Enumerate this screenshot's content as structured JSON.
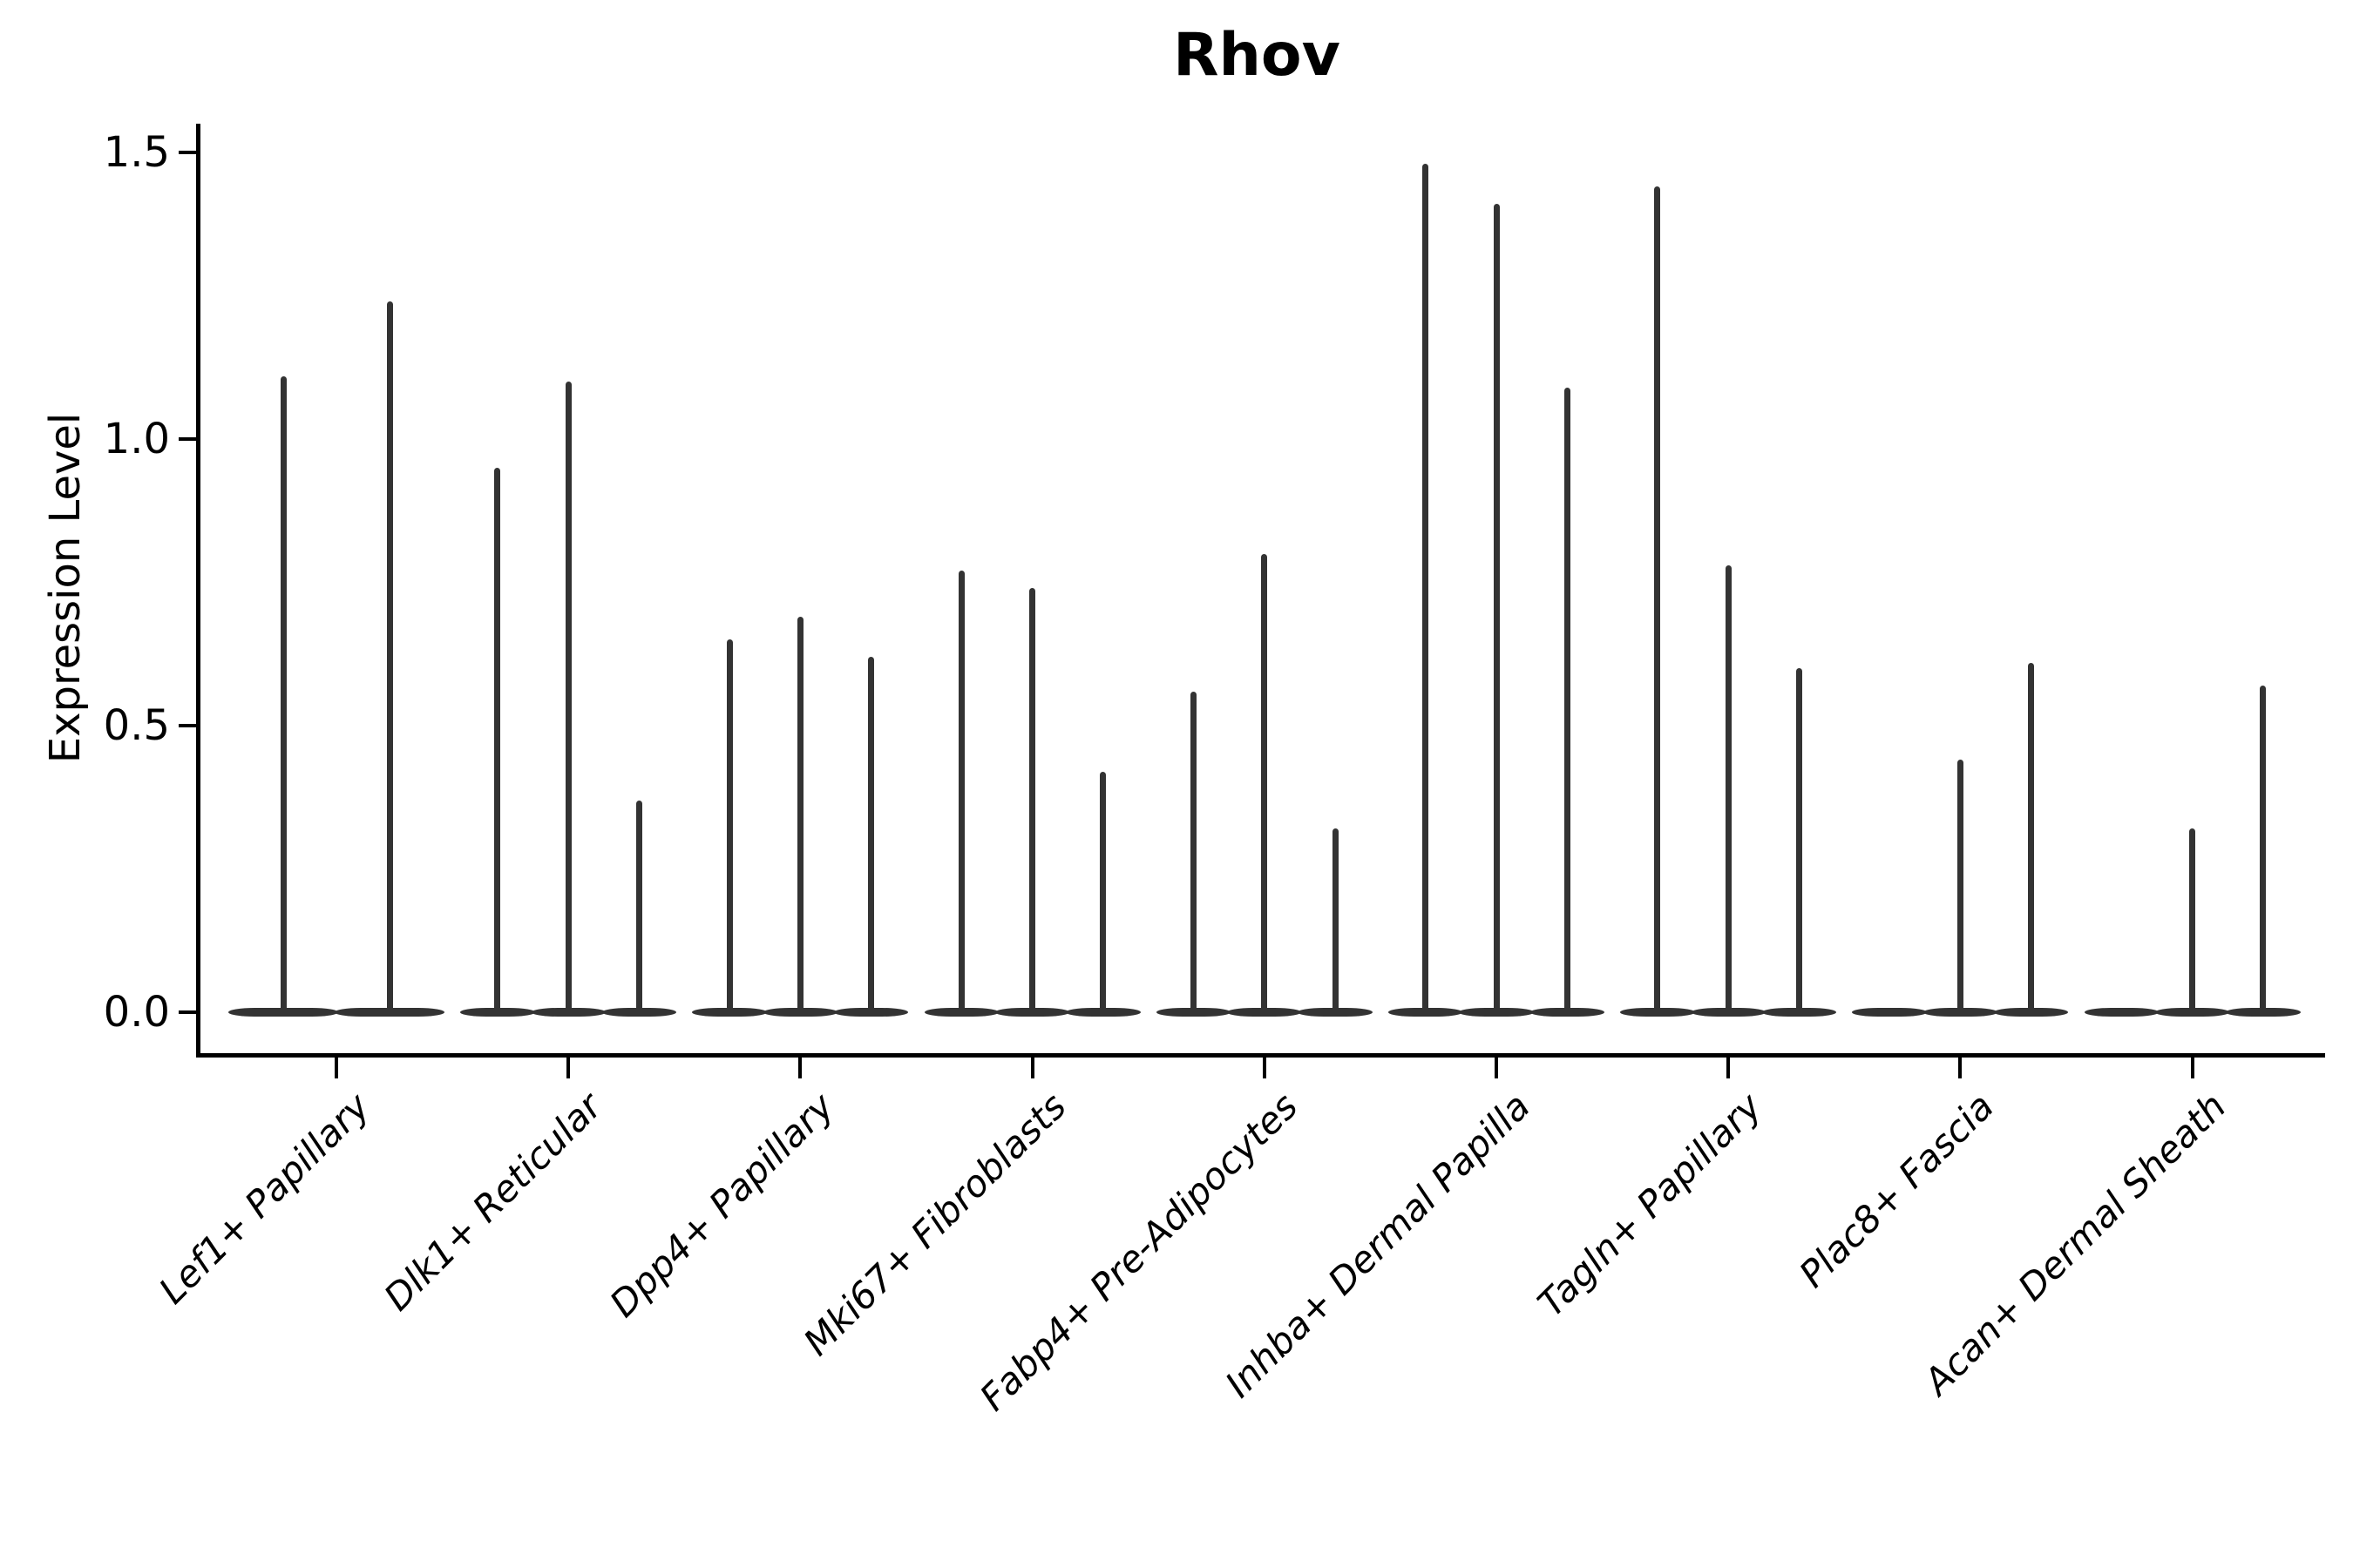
{
  "title": "Rhov",
  "y_axis": {
    "label": "Expression Level",
    "tick_labels": [
      "0.0",
      "0.5",
      "1.0",
      "1.5"
    ]
  },
  "x_axis": {
    "tick_labels": [
      "Lef1+ Papillary",
      "Dlk1+ Reticular",
      "Dpp4+ Papillary",
      "Mki67+ Fibroblasts",
      "Fabp4+ Pre-Adipocytes",
      "Inhba+ Dermal Papilla",
      "Tagln+ Papillary",
      "Plac8+ Fascia",
      "Acan+ Dermal Sheath"
    ]
  },
  "chart_data": {
    "type": "violin",
    "title": "Rhov",
    "xlabel": "",
    "ylabel": "Expression Level",
    "ylim": [
      0,
      1.55
    ],
    "yticks": [
      0.0,
      0.5,
      1.0,
      1.5
    ],
    "grid": false,
    "legend": "none",
    "x_tick_rotation": 45,
    "x_tick_style": "italic",
    "violin_style": "density collapsed flat at 0 with thin spike up to max value per violin",
    "categories": [
      "Lef1+ Papillary",
      "Dlk1+ Reticular",
      "Dpp4+ Papillary",
      "Mki67+ Fibroblasts",
      "Fabp4+ Pre-Adipocytes",
      "Inhba+ Dermal Papilla",
      "Tagln+ Papillary",
      "Plac8+ Fascia",
      "Acan+ Dermal Sheath"
    ],
    "groups": [
      {
        "category": "Lef1+ Papillary",
        "violin_max_values": [
          1.11,
          1.24
        ]
      },
      {
        "category": "Dlk1+ Reticular",
        "violin_max_values": [
          0.95,
          1.1,
          0.37
        ]
      },
      {
        "category": "Dpp4+ Papillary",
        "violin_max_values": [
          0.65,
          0.69,
          0.62
        ]
      },
      {
        "category": "Mki67+ Fibroblasts",
        "violin_max_values": [
          0.77,
          0.74,
          0.42
        ]
      },
      {
        "category": "Fabp4+ Pre-Adipocytes",
        "violin_max_values": [
          0.56,
          0.8,
          0.32
        ]
      },
      {
        "category": "Inhba+ Dermal Papilla",
        "violin_max_values": [
          1.48,
          1.41,
          1.09
        ]
      },
      {
        "category": "Tagln+ Papillary",
        "violin_max_values": [
          1.44,
          0.78,
          0.6
        ]
      },
      {
        "category": "Plac8+ Fascia",
        "violin_max_values": [
          0.0,
          0.44,
          0.61
        ]
      },
      {
        "category": "Acan+ Dermal Sheath",
        "violin_max_values": [
          0.0,
          0.32,
          0.57
        ]
      }
    ],
    "colors": {
      "violin": "#333333",
      "axis": "#000000",
      "text": "#000000",
      "background": "#ffffff"
    }
  }
}
